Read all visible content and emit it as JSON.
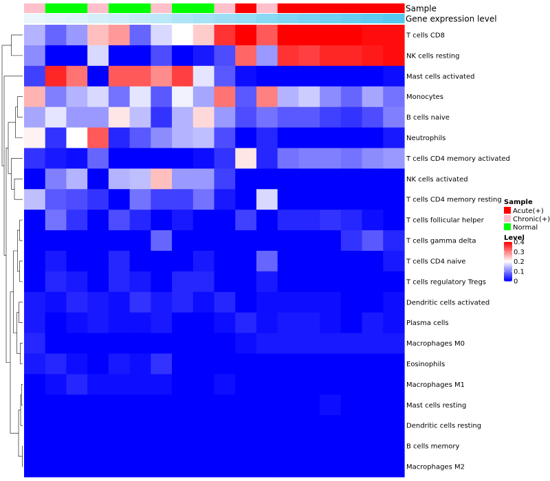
{
  "chart_data": {
    "type": "heatmap",
    "annotation_labels": [
      "Sample",
      "Gene expression level"
    ],
    "rows": [
      "T cells CD8",
      "NK cells resting",
      "Mast cells activated",
      "Monocytes",
      "B cells naive",
      "Neutrophils",
      "T cells CD4 memory activated",
      "NK cells activated",
      "T cells CD4 memory resting",
      "T cells follicular helper",
      "T cells gamma delta",
      "T cells CD4 naive",
      "T cells regulatory  Tregs",
      "Dendritic cells activated",
      "Plasma cells",
      "Macrophages M0",
      "Eosinophils",
      "Macrophages M1",
      "Mast cells resting",
      "Dendritic cells resting",
      "B cells memory",
      "Macrophages M2"
    ],
    "sample_groups": [
      "Chronic(+)",
      "Normal",
      "Normal",
      "Chronic(+)",
      "Normal",
      "Normal",
      "Chronic(+)",
      "Normal",
      "Normal",
      "Chronic(+)",
      "Acute(+)",
      "Chronic(+)",
      "Acute(+)",
      "Acute(+)",
      "Acute(+)",
      "Acute(+)",
      "Acute(+)",
      "Acute(+)"
    ],
    "expression_level": [
      0.02,
      0.04,
      0.05,
      0.07,
      0.09,
      0.11,
      0.13,
      0.16,
      0.18,
      0.2,
      0.22,
      0.25,
      0.27,
      0.29,
      0.31,
      0.33,
      0.35,
      0.37
    ],
    "values": [
      [
        0.14,
        0.08,
        0.12,
        0.25,
        0.28,
        0.08,
        0.17,
        0.2,
        0.24,
        0.36,
        0.4,
        0.33,
        0.4,
        0.4,
        0.4,
        0.4,
        0.39,
        0.39
      ],
      [
        0.11,
        0.0,
        0.0,
        0.17,
        0.0,
        0.0,
        0.06,
        0.0,
        0.02,
        0.06,
        0.32,
        0.12,
        0.36,
        0.35,
        0.37,
        0.37,
        0.38,
        0.39
      ],
      [
        0.05,
        0.37,
        0.31,
        0.0,
        0.33,
        0.33,
        0.29,
        0.35,
        0.18,
        0.07,
        0.01,
        0.0,
        0.0,
        0.0,
        0.0,
        0.0,
        0.0,
        0.01
      ],
      [
        0.26,
        0.1,
        0.14,
        0.17,
        0.09,
        0.18,
        0.07,
        0.19,
        0.13,
        0.31,
        0.07,
        0.3,
        0.14,
        0.16,
        0.11,
        0.08,
        0.13,
        0.09
      ],
      [
        0.13,
        0.18,
        0.12,
        0.12,
        0.22,
        0.15,
        0.04,
        0.14,
        0.23,
        0.12,
        0.06,
        0.09,
        0.07,
        0.07,
        0.05,
        0.04,
        0.06,
        0.1
      ],
      [
        0.21,
        0.04,
        0.2,
        0.33,
        0.03,
        0.07,
        0.11,
        0.14,
        0.15,
        0.06,
        0.0,
        0.03,
        0.0,
        0.0,
        0.0,
        0.0,
        0.0,
        0.02
      ],
      [
        0.04,
        0.02,
        0.01,
        0.08,
        0.0,
        0.0,
        0.0,
        0.0,
        0.01,
        0.04,
        0.22,
        0.03,
        0.09,
        0.1,
        0.1,
        0.09,
        0.11,
        0.12
      ],
      [
        0.0,
        0.1,
        0.14,
        0.0,
        0.14,
        0.15,
        0.25,
        0.12,
        0.12,
        0.05,
        0.0,
        0.0,
        0.0,
        0.0,
        0.0,
        0.0,
        0.0,
        0.0
      ],
      [
        0.15,
        0.07,
        0.06,
        0.04,
        0.0,
        0.09,
        0.05,
        0.05,
        0.09,
        0.02,
        0.0,
        0.17,
        0.0,
        0.0,
        0.0,
        0.0,
        0.0,
        0.0
      ],
      [
        0.0,
        0.09,
        0.04,
        0.0,
        0.06,
        0.03,
        0.0,
        0.02,
        0.0,
        0.0,
        0.05,
        0.0,
        0.03,
        0.03,
        0.04,
        0.03,
        0.01,
        0.0
      ],
      [
        0.0,
        0.0,
        0.0,
        0.0,
        0.0,
        0.0,
        0.08,
        0.0,
        0.0,
        0.0,
        0.0,
        0.0,
        0.0,
        0.0,
        0.0,
        0.04,
        0.07,
        0.03
      ],
      [
        0.0,
        0.02,
        0.0,
        0.0,
        0.03,
        0.0,
        0.0,
        0.0,
        0.02,
        0.0,
        0.0,
        0.08,
        0.0,
        0.0,
        0.0,
        0.0,
        0.0,
        0.02
      ],
      [
        0.0,
        0.03,
        0.02,
        0.0,
        0.03,
        0.02,
        0.0,
        0.03,
        0.03,
        0.0,
        0.0,
        0.02,
        0.0,
        0.0,
        0.0,
        0.0,
        0.0,
        0.0
      ],
      [
        0.02,
        0.01,
        0.03,
        0.02,
        0.01,
        0.04,
        0.02,
        0.03,
        0.01,
        0.03,
        0.0,
        0.01,
        0.01,
        0.01,
        0.01,
        0.0,
        0.0,
        0.01
      ],
      [
        0.02,
        0.0,
        0.01,
        0.02,
        0.01,
        0.01,
        0.02,
        0.0,
        0.0,
        0.01,
        0.03,
        0.01,
        0.02,
        0.02,
        0.01,
        0.0,
        0.02,
        0.01
      ],
      [
        0.03,
        0.0,
        0.0,
        0.0,
        0.0,
        0.0,
        0.0,
        0.0,
        0.0,
        0.0,
        0.01,
        0.02,
        0.02,
        0.02,
        0.02,
        0.02,
        0.02,
        0.02
      ],
      [
        0.02,
        0.03,
        0.01,
        0.0,
        0.02,
        0.01,
        0.04,
        0.0,
        0.0,
        0.0,
        0.0,
        0.0,
        0.0,
        0.0,
        0.0,
        0.0,
        0.0,
        0.0
      ],
      [
        0.0,
        0.01,
        0.03,
        0.01,
        0.01,
        0.01,
        0.01,
        0.0,
        0.0,
        0.01,
        0.0,
        0.0,
        0.0,
        0.0,
        0.0,
        0.0,
        0.0,
        0.0
      ],
      [
        0.0,
        0.0,
        0.0,
        0.0,
        0.0,
        0.0,
        0.0,
        0.0,
        0.0,
        0.0,
        0.0,
        0.0,
        0.0,
        0.0,
        0.01,
        0.0,
        0.0,
        0.0
      ],
      [
        0.0,
        0.0,
        0.0,
        0.0,
        0.0,
        0.0,
        0.0,
        0.0,
        0.0,
        0.0,
        0.0,
        0.0,
        0.0,
        0.0,
        0.0,
        0.0,
        0.0,
        0.0
      ],
      [
        0.0,
        0.0,
        0.0,
        0.0,
        0.0,
        0.0,
        0.0,
        0.0,
        0.0,
        0.0,
        0.0,
        0.0,
        0.0,
        0.0,
        0.0,
        0.0,
        0.0,
        0.0
      ],
      [
        0.0,
        0.0,
        0.0,
        0.0,
        0.0,
        0.0,
        0.0,
        0.0,
        0.0,
        0.0,
        0.0,
        0.0,
        0.0,
        0.0,
        0.0,
        0.0,
        0.0,
        0.0
      ]
    ],
    "color_scale": {
      "min": 0,
      "mid": 0.2,
      "max": 0.4,
      "low": "#0000ff",
      "middle": "#ffffff",
      "high": "#ff0000"
    },
    "legend": {
      "sample_title": "Sample",
      "sample_items": [
        {
          "label": "Acute(+)",
          "color": "#ff0000"
        },
        {
          "label": "Chronic(+)",
          "color": "#ffc0cb"
        },
        {
          "label": "Normal",
          "color": "#00ff00"
        }
      ],
      "level_title": "Level",
      "level_ticks": [
        "0.4",
        "0.3",
        "0.2",
        "0.1",
        "0"
      ],
      "level_tick_values": [
        0.4,
        0.3,
        0.2,
        0.1,
        0
      ]
    },
    "expression_colors": {
      "low": "#eaf6fb",
      "high": "#56c8f0"
    },
    "dendrogram": [
      [
        0,
        1,
        0.55
      ],
      [
        3,
        4,
        0.25
      ],
      [
        "c2",
        5,
        0.35
      ],
      [
        7,
        8,
        0.4
      ],
      [
        6,
        "c4",
        0.55
      ],
      [
        "c3",
        "c5",
        0.7
      ],
      [
        9,
        10,
        0.15
      ],
      [
        11,
        12,
        0.15
      ],
      [
        "c7",
        "c8",
        0.25
      ],
      [
        13,
        14,
        0.18
      ],
      [
        15,
        16,
        0.12
      ],
      [
        "c10",
        "c11",
        0.28
      ],
      [
        "c9",
        "c12",
        0.45
      ],
      [
        17,
        18,
        0.06
      ],
      [
        "c14",
        19,
        0.1
      ],
      [
        20,
        21,
        0.02
      ],
      [
        "c15",
        "c16",
        0.2
      ],
      [
        "c13",
        "c17",
        0.6
      ],
      [
        "c6",
        "c18",
        0.8
      ],
      [
        2,
        "c19",
        0.9
      ],
      [
        "c1",
        "c20",
        1.0
      ]
    ]
  }
}
